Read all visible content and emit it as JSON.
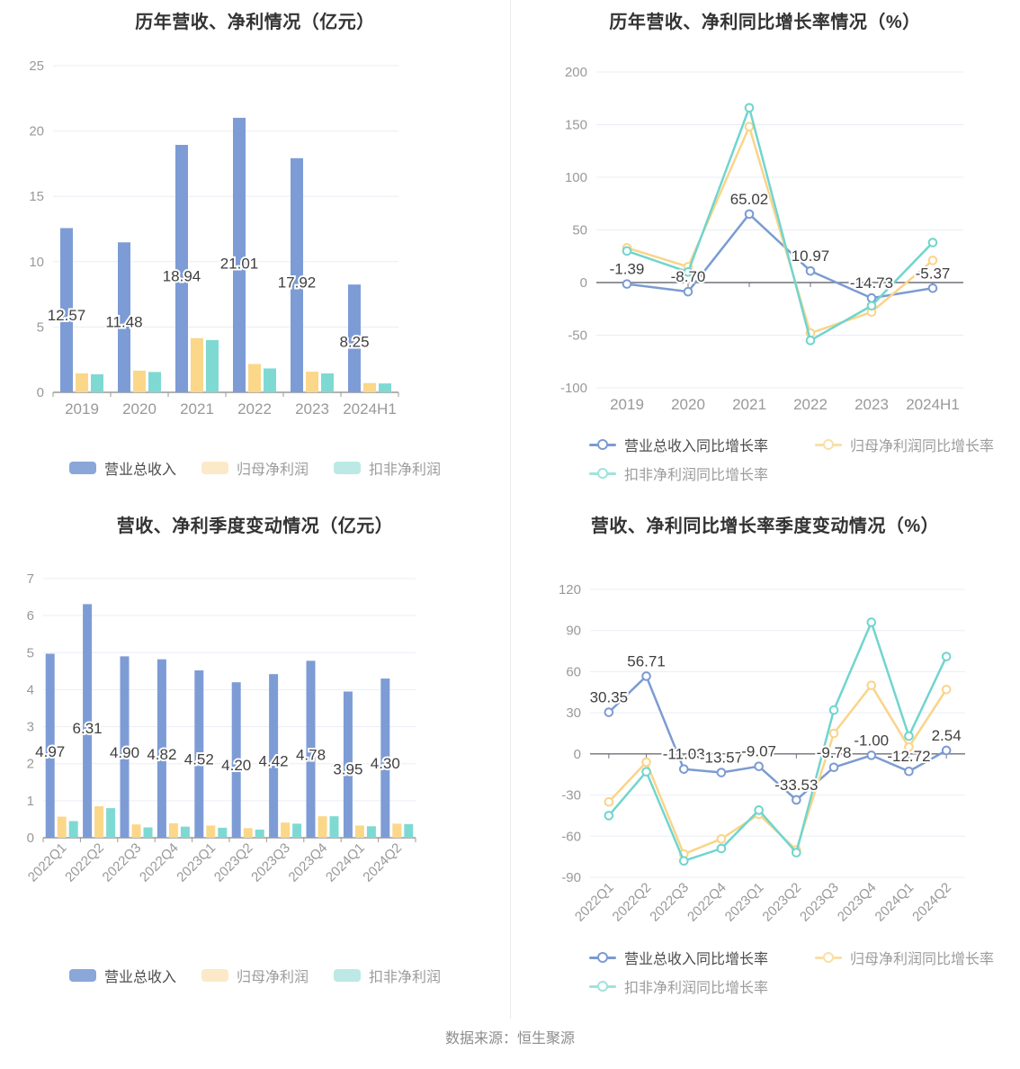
{
  "page": {
    "source_note": "数据来源：恒生聚源"
  },
  "palette": {
    "revenue_blue": "#7D9CD6",
    "profit_orange": "#FBD78A",
    "nongaap_teal": "#7FD9D3",
    "legend_blue": "#8BA6D8",
    "legend_orange_light": "#FBE9C8",
    "legend_teal_light": "#BCE9E5",
    "legend_line_orange": "#F9DFA8",
    "legend_line_teal": "#9FE3DD",
    "grid": "#E9EDF6",
    "axis_line": "#999999",
    "zero_line": "#6E7079",
    "tick_label": "#999999",
    "value_label": "#3F3F3F",
    "title": "#333333"
  },
  "chart_data": [
    {
      "id": "annual-revenue-profit",
      "type": "bar",
      "title": "历年营收、净利情况（亿元）",
      "categories": [
        "2019",
        "2020",
        "2021",
        "2022",
        "2023",
        "2024H1"
      ],
      "ylim": [
        0,
        25
      ],
      "yticks": [
        0,
        5,
        10,
        15,
        20,
        25
      ],
      "grid": true,
      "legend_position": "bottom-center",
      "series": [
        {
          "name": "营业总收入",
          "color": "#7D9CD6",
          "legend_color": "#8BA6D8",
          "values": [
            12.57,
            11.48,
            18.94,
            21.01,
            17.92,
            8.25
          ],
          "labels": [
            "12.57",
            "11.48",
            "18.94",
            "21.01",
            "17.92",
            "8.25"
          ]
        },
        {
          "name": "归母净利润",
          "color": "#FBD78A",
          "legend_color": "#FBE9C8",
          "values": [
            1.45,
            1.66,
            4.15,
            2.17,
            1.58,
            0.71
          ]
        },
        {
          "name": "扣非净利润",
          "color": "#7FD9D3",
          "legend_color": "#BCE9E5",
          "values": [
            1.38,
            1.56,
            4.0,
            1.83,
            1.45,
            0.68
          ]
        }
      ]
    },
    {
      "id": "annual-growth-rate",
      "type": "line",
      "title": "历年营收、净利同比增长率情况（%）",
      "categories": [
        "2019",
        "2020",
        "2021",
        "2022",
        "2023",
        "2024H1"
      ],
      "ylim": [
        -100,
        200
      ],
      "yticks": [
        -100,
        -50,
        0,
        50,
        100,
        150,
        200
      ],
      "grid": true,
      "legend_position": "bottom-left-two-rows",
      "series": [
        {
          "name": "营业总收入同比增长率",
          "color": "#7B9BD2",
          "legend_color": "#7B9BD2",
          "values": [
            -1.39,
            -8.7,
            65.02,
            10.97,
            -14.73,
            -5.37
          ],
          "labels": [
            "-1.39",
            "-8.70",
            "65.02",
            "10.97",
            "-14.73",
            "-5.37"
          ]
        },
        {
          "name": "归母净利润同比增长率",
          "color": "#FAD489",
          "legend_color": "#F9DFA8",
          "values": [
            33,
            15,
            148,
            -48,
            -28,
            21
          ]
        },
        {
          "name": "扣非净利润同比增长率",
          "color": "#70D5CE",
          "legend_color": "#9FE3DD",
          "values": [
            30,
            10,
            166,
            -55,
            -22,
            38
          ]
        }
      ]
    },
    {
      "id": "quarterly-revenue-profit",
      "type": "bar",
      "title": "营收、净利季度变动情况（亿元）",
      "categories": [
        "2022Q1",
        "2022Q2",
        "2022Q3",
        "2022Q4",
        "2023Q1",
        "2023Q2",
        "2023Q3",
        "2023Q4",
        "2024Q1",
        "2024Q2"
      ],
      "ylim": [
        0,
        7
      ],
      "yticks": [
        0,
        1,
        2,
        3,
        4,
        5,
        6,
        7
      ],
      "grid": true,
      "legend_position": "bottom-center",
      "series": [
        {
          "name": "营业总收入",
          "color": "#7D9CD6",
          "legend_color": "#8BA6D8",
          "values": [
            4.97,
            6.31,
            4.9,
            4.82,
            4.52,
            4.2,
            4.42,
            4.78,
            3.95,
            4.3
          ],
          "labels": [
            "4.97",
            "6.31",
            "4.90",
            "4.82",
            "4.52",
            "4.20",
            "4.42",
            "4.78",
            "3.95",
            "4.30"
          ]
        },
        {
          "name": "归母净利润",
          "color": "#FBD78A",
          "legend_color": "#FBE9C8",
          "values": [
            0.57,
            0.85,
            0.36,
            0.39,
            0.33,
            0.26,
            0.41,
            0.58,
            0.33,
            0.38
          ]
        },
        {
          "name": "扣非净利润",
          "color": "#7FD9D3",
          "legend_color": "#BCE9E5",
          "values": [
            0.45,
            0.8,
            0.28,
            0.3,
            0.27,
            0.22,
            0.38,
            0.58,
            0.31,
            0.37
          ]
        }
      ]
    },
    {
      "id": "quarterly-growth-rate",
      "type": "line",
      "title": "营收、净利同比增长率季度变动情况（%）",
      "categories": [
        "2022Q1",
        "2022Q2",
        "2022Q3",
        "2022Q4",
        "2023Q1",
        "2023Q2",
        "2023Q3",
        "2023Q4",
        "2024Q1",
        "2024Q2"
      ],
      "ylim": [
        -90,
        120
      ],
      "yticks": [
        -90,
        -60,
        -30,
        0,
        30,
        60,
        90,
        120
      ],
      "grid": true,
      "legend_position": "bottom-left-two-rows",
      "series": [
        {
          "name": "营业总收入同比增长率",
          "color": "#7B9BD2",
          "legend_color": "#7B9BD2",
          "values": [
            30.35,
            56.71,
            -11.03,
            -13.57,
            -9.07,
            -33.53,
            -9.78,
            -1.0,
            -12.72,
            2.54
          ],
          "labels": [
            "30.35",
            "56.71",
            "-11.03",
            "-13.57",
            "-9.07",
            "-33.53",
            "-9.78",
            "-1.00",
            "-12.72",
            "2.54"
          ]
        },
        {
          "name": "归母净利润同比增长率",
          "color": "#FAD489",
          "legend_color": "#F9DFA8",
          "values": [
            -35,
            -6,
            -73,
            -62,
            -44,
            -70,
            15,
            50,
            5,
            47
          ]
        },
        {
          "name": "扣非净利润同比增长率",
          "color": "#70D5CE",
          "legend_color": "#9FE3DD",
          "values": [
            -45,
            -13,
            -78,
            -69,
            -41,
            -72,
            32,
            96,
            13,
            71
          ]
        }
      ]
    }
  ]
}
